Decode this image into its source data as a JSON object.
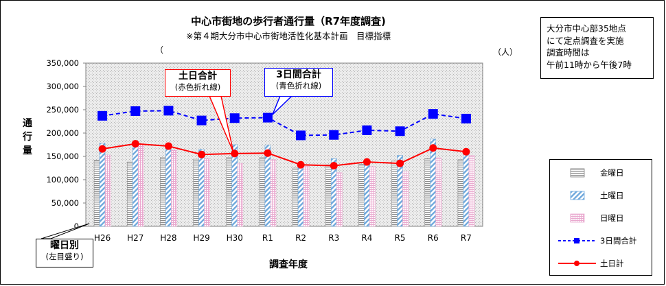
{
  "chart_data": {
    "type": "bar",
    "title": "中心市街地の歩行者通行量（R7年度調査)",
    "subtitle": "※第４期大分市中心市街地活性化基本計画　目標指標",
    "paren_left": "（",
    "unit": "（人）",
    "xlabel": "調査年度",
    "ylabel": "通行量",
    "ylim": [
      0,
      350000
    ],
    "yticks": [
      "0",
      "50,000",
      "100,000",
      "150,000",
      "200,000",
      "250,000",
      "300,000",
      "350,000"
    ],
    "categories": [
      "H26",
      "H27",
      "H28",
      "H29",
      "H30",
      "R1",
      "R2",
      "R3",
      "R4",
      "R5",
      "R6",
      "R7"
    ],
    "series": [
      {
        "name": "金曜日",
        "kind": "bar",
        "values": [
          142000,
          138000,
          148000,
          144000,
          148000,
          148000,
          125000,
          132000,
          133000,
          140000,
          145000,
          143000
        ]
      },
      {
        "name": "土曜日",
        "kind": "bar",
        "values": [
          178000,
          170000,
          165000,
          165000,
          175000,
          174000,
          135000,
          145000,
          140000,
          152000,
          187000,
          165000
        ]
      },
      {
        "name": "日曜日",
        "kind": "bar",
        "values": [
          153000,
          177000,
          163000,
          145000,
          135000,
          143000,
          129000,
          115000,
          128000,
          118000,
          147000,
          152000
        ]
      },
      {
        "name": "3日間合計",
        "kind": "line",
        "color": "#0000ff",
        "values": [
          237000,
          247000,
          248000,
          227000,
          232000,
          233000,
          195000,
          196000,
          206000,
          204000,
          241000,
          231000
        ]
      },
      {
        "name": "土日計",
        "kind": "line",
        "color": "#ff0000",
        "values": [
          166000,
          177000,
          172000,
          154000,
          156000,
          157000,
          132000,
          130000,
          138000,
          135000,
          168000,
          160000
        ]
      }
    ]
  },
  "infobox": {
    "line1": "大分市中心部35地点",
    "line2": "にて定点調査を実施",
    "line3": "調査時間は",
    "line4": "午前11時から午後7時"
  },
  "callouts": {
    "red_title": "土日合計",
    "red_sub": "(赤色折れ線)",
    "blue_title": "3日間合計",
    "blue_sub": "(青色折れ線)",
    "day_title": "曜日別",
    "day_sub": "(左目盛り)"
  },
  "legend": {
    "fri": "金曜日",
    "sat": "土曜日",
    "sun": "日曜日",
    "total3": "3日間合計",
    "weekend": "土日計"
  },
  "colors": {
    "blue": "#0000ff",
    "red": "#ff0000",
    "plot_bg": "#e6e6e6"
  }
}
